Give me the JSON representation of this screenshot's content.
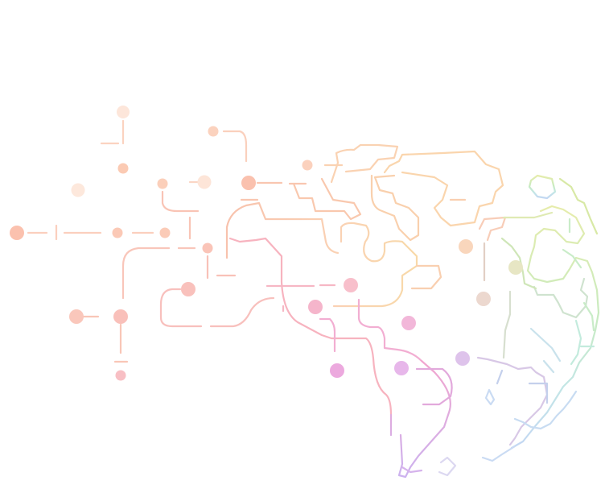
{
  "illustration": {
    "name": "network-world-map",
    "palette": {
      "peach": "#f7c3a8",
      "salmon": "#f8b7a8",
      "pink": "#f7b4c4",
      "magenta": "#eea5da",
      "violet": "#d6b2ee",
      "taupe": "#e3cdbf",
      "lime": "#dbe7a8",
      "green": "#cdeab4",
      "teal": "#bfe8dc",
      "blue": "#bcd6f2"
    }
  }
}
